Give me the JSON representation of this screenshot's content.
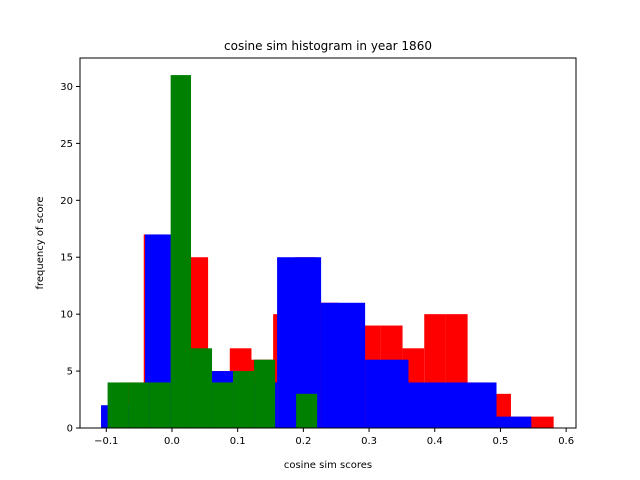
{
  "chart_data": {
    "type": "bar",
    "title": "cosine sim histogram in year 1860",
    "xlabel": "cosine sim scores",
    "ylabel": "frequency of score",
    "xlim": [
      -0.14,
      0.615
    ],
    "ylim": [
      0,
      32.5
    ],
    "xticks": [
      -0.1,
      0.0,
      0.1,
      0.2,
      0.3,
      0.4,
      0.5,
      0.6
    ],
    "xtick_labels": [
      "−0.1",
      "0.0",
      "0.1",
      "0.2",
      "0.3",
      "0.4",
      "0.5",
      "0.6"
    ],
    "yticks": [
      0,
      5,
      10,
      15,
      20,
      25,
      30
    ],
    "ytick_labels": [
      "0",
      "5",
      "10",
      "15",
      "20",
      "25",
      "30"
    ],
    "grid": false,
    "series": [
      {
        "color": "#ff0000",
        "bins": [
          {
            "x0": -0.076,
            "x1": -0.043,
            "count": 4
          },
          {
            "x0": -0.043,
            "x1": -0.01,
            "count": 17
          },
          {
            "x0": -0.01,
            "x1": 0.023,
            "count": 10
          },
          {
            "x0": 0.023,
            "x1": 0.055,
            "count": 15
          },
          {
            "x0": 0.055,
            "x1": 0.088,
            "count": 5
          },
          {
            "x0": 0.088,
            "x1": 0.121,
            "count": 7
          },
          {
            "x0": 0.121,
            "x1": 0.154,
            "count": 6
          },
          {
            "x0": 0.154,
            "x1": 0.187,
            "count": 10
          },
          {
            "x0": 0.187,
            "x1": 0.22,
            "count": 15
          },
          {
            "x0": 0.22,
            "x1": 0.253,
            "count": 11
          },
          {
            "x0": 0.253,
            "x1": 0.286,
            "count": 9
          },
          {
            "x0": 0.286,
            "x1": 0.318,
            "count": 9
          },
          {
            "x0": 0.318,
            "x1": 0.351,
            "count": 9
          },
          {
            "x0": 0.351,
            "x1": 0.384,
            "count": 7
          },
          {
            "x0": 0.384,
            "x1": 0.417,
            "count": 10
          },
          {
            "x0": 0.417,
            "x1": 0.45,
            "count": 10
          },
          {
            "x0": 0.45,
            "x1": 0.483,
            "count": 4
          },
          {
            "x0": 0.483,
            "x1": 0.516,
            "count": 3
          },
          {
            "x0": 0.516,
            "x1": 0.548,
            "count": 1
          },
          {
            "x0": 0.548,
            "x1": 0.581,
            "count": 1
          }
        ]
      },
      {
        "color": "#0000ff",
        "bins": [
          {
            "x0": -0.108,
            "x1": -0.041,
            "count": 2
          },
          {
            "x0": -0.041,
            "x1": 0.026,
            "count": 17
          },
          {
            "x0": 0.026,
            "x1": 0.093,
            "count": 5
          },
          {
            "x0": 0.093,
            "x1": 0.16,
            "count": 4
          },
          {
            "x0": 0.16,
            "x1": 0.227,
            "count": 15
          },
          {
            "x0": 0.227,
            "x1": 0.294,
            "count": 11
          },
          {
            "x0": 0.294,
            "x1": 0.36,
            "count": 6
          },
          {
            "x0": 0.36,
            "x1": 0.427,
            "count": 4
          },
          {
            "x0": 0.427,
            "x1": 0.494,
            "count": 4
          },
          {
            "x0": 0.494,
            "x1": 0.547,
            "count": 1
          }
        ]
      },
      {
        "color": "#008000",
        "bins": [
          {
            "x0": -0.098,
            "x1": -0.066,
            "count": 4
          },
          {
            "x0": -0.066,
            "x1": -0.034,
            "count": 4
          },
          {
            "x0": -0.034,
            "x1": -0.002,
            "count": 4
          },
          {
            "x0": -0.002,
            "x1": 0.029,
            "count": 31
          },
          {
            "x0": 0.029,
            "x1": 0.061,
            "count": 7
          },
          {
            "x0": 0.061,
            "x1": 0.093,
            "count": 4
          },
          {
            "x0": 0.093,
            "x1": 0.125,
            "count": 5
          },
          {
            "x0": 0.125,
            "x1": 0.157,
            "count": 6
          },
          {
            "x0": 0.157,
            "x1": 0.189,
            "count": 0
          },
          {
            "x0": 0.189,
            "x1": 0.221,
            "count": 3
          }
        ]
      }
    ]
  }
}
